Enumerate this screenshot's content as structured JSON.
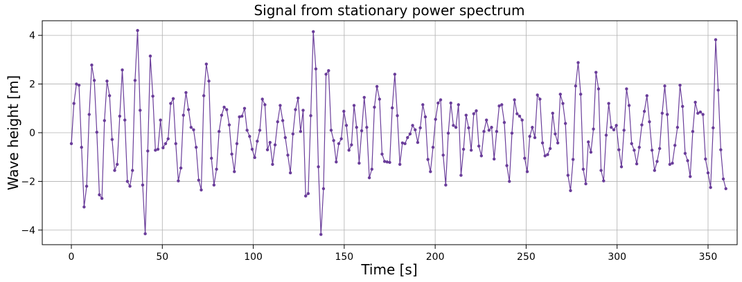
{
  "chart_data": {
    "type": "line",
    "title": "Signal from stationary power spectrum",
    "xlabel": "Time [s]",
    "ylabel": "Wave height [m]",
    "xlim": [
      -16,
      366
    ],
    "ylim": [
      -4.6,
      4.6
    ],
    "x_ticks": [
      0,
      50,
      100,
      150,
      200,
      250,
      300,
      350
    ],
    "y_ticks": [
      -4,
      -2,
      0,
      2,
      4
    ],
    "grid": true,
    "series": [
      {
        "color": "#6a3d9a",
        "marker": "circle",
        "x_start": 0,
        "x_step": 1.4,
        "y": [
          -0.45,
          1.2,
          2.0,
          1.95,
          -0.6,
          -3.05,
          -2.2,
          0.75,
          2.78,
          2.15,
          0.02,
          -2.55,
          -2.7,
          0.5,
          2.12,
          1.52,
          -0.28,
          -1.55,
          -1.3,
          0.68,
          2.58,
          0.52,
          -2.0,
          -2.2,
          -1.55,
          2.15,
          4.2,
          0.92,
          -2.15,
          -4.15,
          -0.75,
          3.15,
          1.5,
          -0.72,
          -0.68,
          0.52,
          -0.62,
          -0.45,
          -0.25,
          1.2,
          1.4,
          -0.45,
          -1.98,
          -1.45,
          0.72,
          1.65,
          0.95,
          0.22,
          0.12,
          -0.6,
          -1.95,
          -2.35,
          1.52,
          2.82,
          2.12,
          -1.05,
          -2.15,
          -1.5,
          0.05,
          0.72,
          1.05,
          0.95,
          0.32,
          -0.88,
          -1.6,
          -0.45,
          0.65,
          0.68,
          1.0,
          0.1,
          -0.15,
          -0.68,
          -1.02,
          -0.35,
          0.1,
          1.38,
          1.15,
          -0.7,
          -0.4,
          -1.3,
          -0.5,
          0.45,
          1.12,
          0.5,
          -0.2,
          -0.92,
          -1.65,
          -0.05,
          0.95,
          1.42,
          0.05,
          0.92,
          -2.6,
          -2.5,
          0.7,
          4.15,
          2.62,
          -1.4,
          -4.18,
          -2.3,
          2.4,
          2.55,
          0.1,
          -0.32,
          -1.2,
          -0.45,
          -0.25,
          0.88,
          0.3,
          -0.72,
          -0.5,
          1.12,
          0.22,
          -1.25,
          0.08,
          1.45,
          0.22,
          -1.85,
          -1.5,
          1.05,
          1.9,
          1.38,
          -0.88,
          -1.18,
          -1.2,
          -1.22,
          1.02,
          2.4,
          0.7,
          -1.3,
          -0.42,
          -0.45,
          -0.2,
          -0.05,
          0.3,
          0.12,
          -0.4,
          0.2,
          1.15,
          0.65,
          -1.1,
          -1.6,
          -0.6,
          0.55,
          1.22,
          1.35,
          -0.92,
          -2.15,
          -0.02,
          1.22,
          0.3,
          0.22,
          1.15,
          -1.75,
          -0.68,
          0.72,
          0.2,
          -0.72,
          0.78,
          0.9,
          -0.55,
          -0.95,
          0.05,
          0.52,
          0.1,
          0.22,
          -1.08,
          0.05,
          1.1,
          1.15,
          0.42,
          -1.35,
          -2.0,
          -0.02,
          1.35,
          0.78,
          0.68,
          0.52,
          -1.05,
          -1.6,
          -0.15,
          0.22,
          -0.2,
          1.55,
          1.38,
          -0.42,
          -0.95,
          -0.9,
          -0.65,
          0.8,
          -0.05,
          -0.42,
          1.58,
          1.2,
          0.38,
          -1.75,
          -2.38,
          -1.1,
          1.92,
          2.88,
          1.58,
          -1.5,
          -2.1,
          -0.38,
          -0.8,
          0.15,
          2.48,
          1.8,
          -1.55,
          -1.98,
          -0.1,
          1.2,
          0.22,
          0.12,
          0.3,
          -0.7,
          -1.4,
          0.1,
          1.8,
          1.12,
          -0.45,
          -0.72,
          -1.28,
          -0.6,
          0.32,
          0.88,
          1.52,
          0.45,
          -0.72,
          -1.55,
          -1.18,
          -0.65,
          0.8,
          1.92,
          0.75,
          -1.3,
          -1.25,
          -0.52,
          0.22,
          1.95,
          1.08,
          -0.85,
          -1.15,
          -1.8,
          0.05,
          1.25,
          0.8,
          0.85,
          0.75,
          -1.08,
          -1.65,
          -2.25,
          0.2,
          3.82,
          1.75,
          -0.7,
          -1.9,
          -2.3
        ]
      }
    ]
  }
}
